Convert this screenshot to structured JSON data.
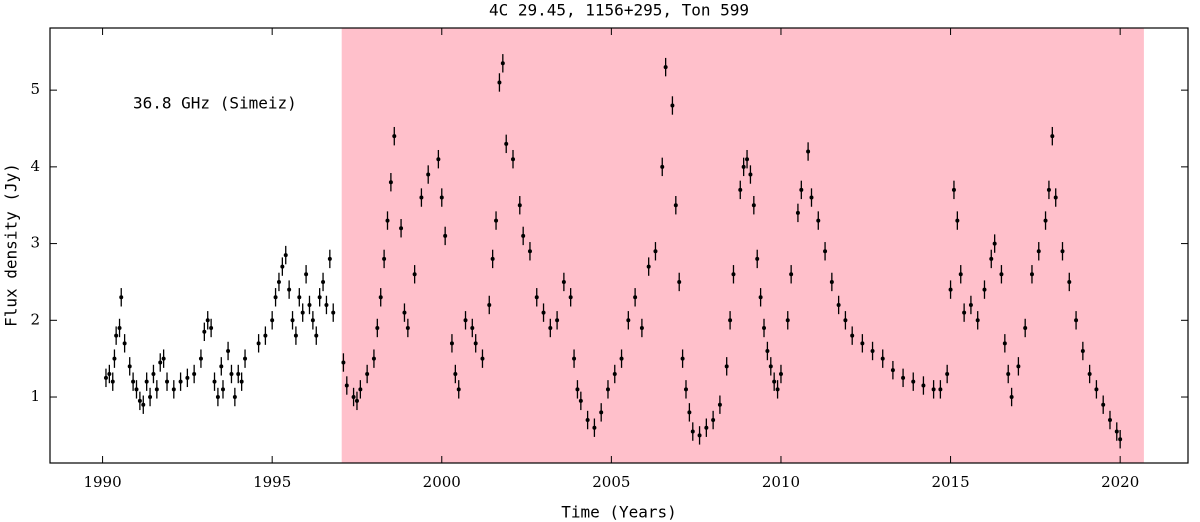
{
  "chart_data": {
    "type": "scatter",
    "title": "4C 29.45, 1156+295, Ton 599",
    "annotation": "36.8 GHz (Simeiz)",
    "x_label": "Time (Years)",
    "y_label": "Flux density (Jy)",
    "xlim": [
      1988.45,
      2022.0
    ],
    "ylim": [
      0.14,
      5.81
    ],
    "xticks": [
      1990,
      1995,
      2000,
      2005,
      2010,
      2015,
      2020
    ],
    "yticks": [
      1,
      2,
      3,
      4,
      5
    ],
    "highlight": {
      "xrange": [
        1997.05,
        2020.7
      ],
      "color": "#ffc0cb"
    },
    "color": "#000000",
    "yerr": 0.12,
    "x": [
      1990.1,
      1990.2,
      1990.3,
      1990.35,
      1990.4,
      1990.5,
      1990.55,
      1990.65,
      1990.8,
      1990.9,
      1991.0,
      1991.1,
      1991.2,
      1991.3,
      1991.4,
      1991.5,
      1991.6,
      1991.7,
      1991.8,
      1991.9,
      1992.1,
      1992.3,
      1992.5,
      1992.7,
      1992.9,
      1993.0,
      1993.1,
      1993.2,
      1993.3,
      1993.4,
      1993.5,
      1993.55,
      1993.7,
      1993.8,
      1993.9,
      1994.0,
      1994.1,
      1994.2,
      1994.6,
      1994.8,
      1995.0,
      1995.1,
      1995.2,
      1995.3,
      1995.4,
      1995.5,
      1995.6,
      1995.7,
      1995.8,
      1995.9,
      1996.0,
      1996.1,
      1996.2,
      1996.3,
      1996.4,
      1996.5,
      1996.6,
      1996.7,
      1996.8,
      1997.1,
      1997.2,
      1997.4,
      1997.5,
      1997.6,
      1997.8,
      1998.0,
      1998.1,
      1998.2,
      1998.3,
      1998.4,
      1998.5,
      1998.6,
      1998.8,
      1998.9,
      1999.0,
      1999.2,
      1999.4,
      1999.6,
      1999.9,
      2000.0,
      2000.1,
      2000.3,
      2000.4,
      2000.5,
      2000.7,
      2000.9,
      2001.0,
      2001.2,
      2001.4,
      2001.5,
      2001.6,
      2001.7,
      2001.8,
      2001.9,
      2002.1,
      2002.3,
      2002.4,
      2002.6,
      2002.8,
      2003.0,
      2003.2,
      2003.4,
      2003.6,
      2003.8,
      2003.9,
      2004.0,
      2004.1,
      2004.3,
      2004.5,
      2004.7,
      2004.9,
      2005.1,
      2005.3,
      2005.5,
      2005.7,
      2005.9,
      2006.1,
      2006.3,
      2006.5,
      2006.6,
      2006.8,
      2006.9,
      2007.0,
      2007.1,
      2007.2,
      2007.3,
      2007.4,
      2007.6,
      2007.8,
      2008.0,
      2008.2,
      2008.4,
      2008.5,
      2008.6,
      2008.8,
      2008.9,
      2009.0,
      2009.1,
      2009.2,
      2009.3,
      2009.4,
      2009.5,
      2009.6,
      2009.7,
      2009.8,
      2009.9,
      2010.0,
      2010.2,
      2010.3,
      2010.5,
      2010.6,
      2010.8,
      2010.9,
      2011.1,
      2011.3,
      2011.5,
      2011.7,
      2011.9,
      2012.1,
      2012.4,
      2012.7,
      2013.0,
      2013.3,
      2013.6,
      2013.9,
      2014.2,
      2014.5,
      2014.7,
      2014.9,
      2015.0,
      2015.1,
      2015.2,
      2015.3,
      2015.4,
      2015.6,
      2015.8,
      2016.0,
      2016.2,
      2016.3,
      2016.5,
      2016.6,
      2016.7,
      2016.8,
      2017.0,
      2017.2,
      2017.4,
      2017.6,
      2017.8,
      2017.9,
      2018.0,
      2018.1,
      2018.3,
      2018.5,
      2018.7,
      2018.9,
      2019.1,
      2019.3,
      2019.5,
      2019.7,
      2019.9,
      2020.0
    ],
    "values": [
      1.25,
      1.3,
      1.2,
      1.5,
      1.8,
      1.9,
      2.3,
      1.7,
      1.4,
      1.2,
      1.1,
      0.95,
      0.9,
      1.2,
      1.0,
      1.3,
      1.1,
      1.45,
      1.5,
      1.2,
      1.1,
      1.2,
      1.25,
      1.3,
      1.5,
      1.85,
      2.0,
      1.9,
      1.2,
      1.0,
      1.4,
      1.1,
      1.6,
      1.3,
      1.0,
      1.3,
      1.2,
      1.5,
      1.7,
      1.8,
      2.0,
      2.3,
      2.5,
      2.7,
      2.85,
      2.4,
      2.0,
      1.8,
      2.3,
      2.1,
      2.6,
      2.2,
      2.0,
      1.8,
      2.3,
      2.5,
      2.2,
      2.8,
      2.1,
      1.45,
      1.15,
      1.0,
      0.95,
      1.1,
      1.3,
      1.5,
      1.9,
      2.3,
      2.8,
      3.3,
      3.8,
      4.4,
      3.2,
      2.1,
      1.9,
      2.6,
      3.6,
      3.9,
      4.1,
      3.6,
      3.1,
      1.7,
      1.3,
      1.1,
      2.0,
      1.9,
      1.7,
      1.5,
      2.2,
      2.8,
      3.3,
      5.1,
      5.35,
      4.3,
      4.1,
      3.5,
      3.1,
      2.9,
      2.3,
      2.1,
      1.9,
      2.0,
      2.5,
      2.3,
      1.5,
      1.1,
      0.95,
      0.7,
      0.6,
      0.8,
      1.1,
      1.3,
      1.5,
      2.0,
      2.3,
      1.9,
      2.7,
      2.9,
      4.0,
      5.3,
      4.8,
      3.5,
      2.5,
      1.5,
      1.1,
      0.8,
      0.55,
      0.5,
      0.6,
      0.7,
      0.9,
      1.4,
      2.0,
      2.6,
      3.7,
      4.0,
      4.1,
      3.9,
      3.5,
      2.8,
      2.3,
      1.9,
      1.6,
      1.4,
      1.2,
      1.1,
      1.3,
      2.0,
      2.6,
      3.4,
      3.7,
      4.2,
      3.6,
      3.3,
      2.9,
      2.5,
      2.2,
      2.0,
      1.8,
      1.7,
      1.6,
      1.5,
      1.35,
      1.25,
      1.2,
      1.15,
      1.1,
      1.1,
      1.3,
      2.4,
      3.7,
      3.3,
      2.6,
      2.1,
      2.2,
      2.0,
      2.4,
      2.8,
      3.0,
      2.6,
      1.7,
      1.3,
      1.0,
      1.4,
      1.9,
      2.6,
      2.9,
      3.3,
      3.7,
      4.4,
      3.6,
      2.9,
      2.5,
      2.0,
      1.6,
      1.3,
      1.1,
      0.9,
      0.7,
      0.55,
      0.45
    ]
  }
}
